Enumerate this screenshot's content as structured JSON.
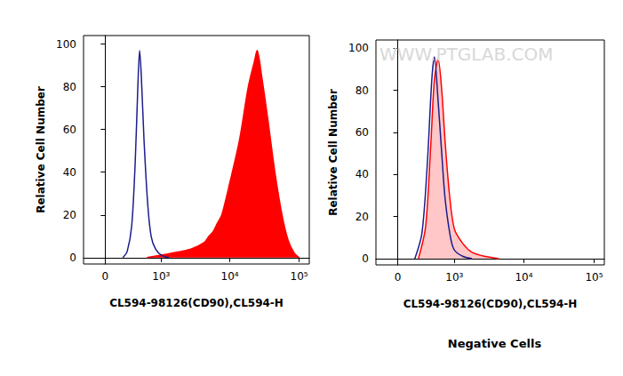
{
  "chart_data": [
    {
      "type": "line",
      "xlabel": "CL594-98126(CD90),CL594-H",
      "ylabel": "Relative Cell Number",
      "xlim": [
        -250,
        140000
      ],
      "xticks": [
        0,
        {
          "value": 1000,
          "label": "10³"
        },
        {
          "value": 10000,
          "label": "10⁴"
        },
        {
          "value": 100000,
          "label": "10⁵"
        }
      ],
      "ylim": [
        -3,
        104
      ],
      "yticks": [
        0,
        20,
        40,
        60,
        80,
        100
      ],
      "grid": false,
      "series": [
        {
          "type": "line",
          "color": "#1c1c8c",
          "x": [
            199,
            256,
            320,
            375,
            419,
            451,
            483,
            537,
            618,
            701,
            822,
            1021,
            1306
          ],
          "values": [
            0,
            3,
            15,
            45,
            80,
            97,
            85,
            55,
            25,
            10,
            4,
            1,
            0
          ]
        },
        {
          "type": "area",
          "color": "#ff0000",
          "x": [
            600,
            1400,
            2750,
            4260,
            5000,
            5730,
            6600,
            7680,
            10000,
            13800,
            18500,
            22700,
            24800,
            28800,
            35300,
            44700,
            56600,
            69500,
            85200,
            100000
          ],
          "values": [
            0,
            2,
            4,
            7,
            10,
            12,
            16,
            20,
            35,
            55,
            80,
            92,
            97,
            85,
            65,
            40,
            20,
            8,
            2,
            0
          ]
        }
      ]
    },
    {
      "type": "line",
      "title": "Negative Cells",
      "annotation": "WWW.PTGLAB.COM",
      "xlabel": "CL594-98126(CD90),CL594-H",
      "ylabel": "Relative Cell Number",
      "xlim": [
        -250,
        140000
      ],
      "xticks": [
        0,
        {
          "value": 1000,
          "label": "10³"
        },
        {
          "value": 10000,
          "label": "10⁴"
        },
        {
          "value": 100000,
          "label": "10⁵"
        }
      ],
      "ylim": [
        -3,
        104
      ],
      "yticks": [
        0,
        20,
        40,
        60,
        80,
        100
      ],
      "grid": false,
      "series": [
        {
          "type": "area",
          "color": "#ff0000",
          "x": [
            233,
            333,
            419,
            483,
            557,
            638,
            723,
            845,
            1000,
            1341,
            1811,
            2832,
            4400
          ],
          "values": [
            0,
            15,
            55,
            85,
            95,
            80,
            55,
            30,
            14,
            7,
            3,
            1,
            0
          ]
        },
        {
          "type": "line",
          "color": "#1c1c8c",
          "x": [
            188,
            280,
            360,
            435,
            483,
            557,
            638,
            723,
            874,
            1000,
            1341,
            1811
          ],
          "values": [
            0,
            12,
            45,
            85,
            96,
            75,
            50,
            28,
            10,
            4,
            1,
            0
          ]
        }
      ]
    }
  ]
}
